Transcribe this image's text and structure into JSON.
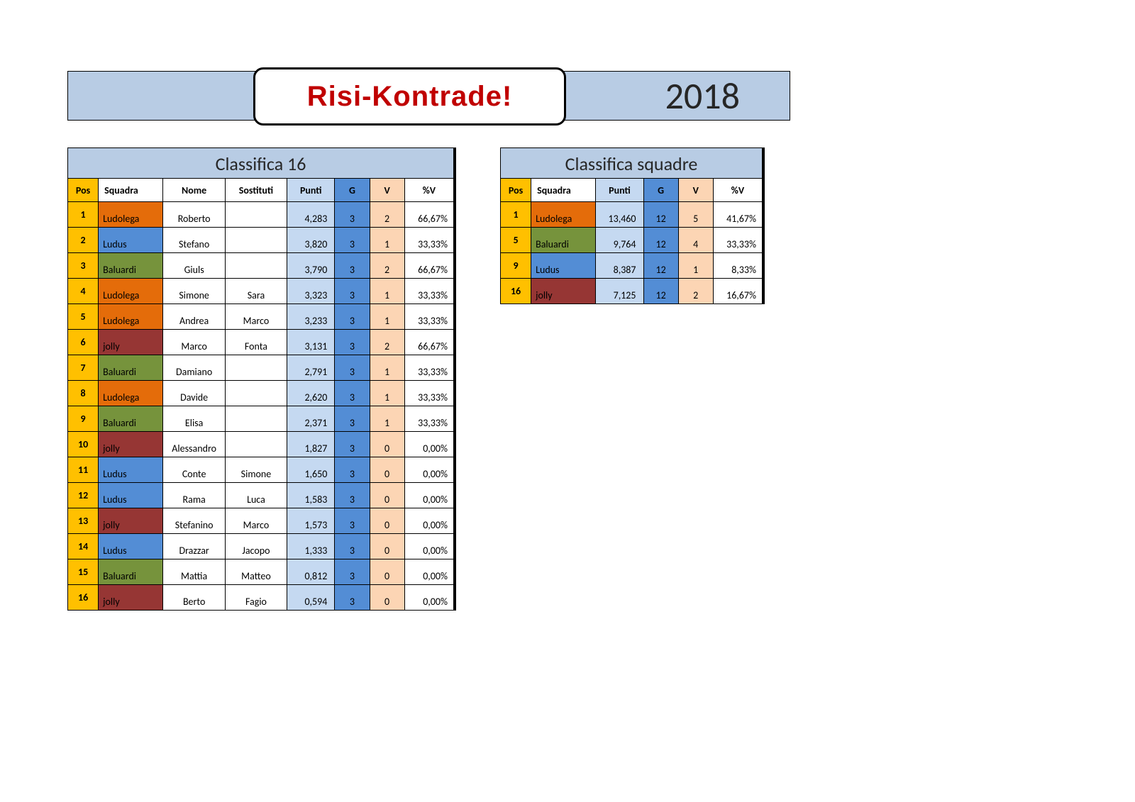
{
  "header": {
    "logo_text": "Risi-Kontrade!",
    "year": "2018"
  },
  "team_colors": {
    "Ludolega": {
      "bg": "#e46c0a",
      "fg": "#000000"
    },
    "Ludus": {
      "bg": "#538dd5",
      "fg": "#000000"
    },
    "Baluardi": {
      "bg": "#76933c",
      "fg": "#000000"
    },
    "jolly": {
      "bg": "#963634",
      "fg": "#000000"
    }
  },
  "table16": {
    "title": "Classifica 16",
    "columns": [
      "Pos",
      "Squadra",
      "Nome",
      "Sostituti",
      "Punti",
      "G",
      "V",
      "%V"
    ],
    "rows": [
      {
        "pos": "1",
        "squadra": "Ludolega",
        "nome": "Roberto",
        "sost": "",
        "punti": "4,283",
        "g": "3",
        "v": "2",
        "pct": "66,67%"
      },
      {
        "pos": "2",
        "squadra": "Ludus",
        "nome": "Stefano",
        "sost": "",
        "punti": "3,820",
        "g": "3",
        "v": "1",
        "pct": "33,33%"
      },
      {
        "pos": "3",
        "squadra": "Baluardi",
        "nome": "Giuls",
        "sost": "",
        "punti": "3,790",
        "g": "3",
        "v": "2",
        "pct": "66,67%"
      },
      {
        "pos": "4",
        "squadra": "Ludolega",
        "nome": "Simone",
        "sost": "Sara",
        "punti": "3,323",
        "g": "3",
        "v": "1",
        "pct": "33,33%"
      },
      {
        "pos": "5",
        "squadra": "Ludolega",
        "nome": "Andrea",
        "sost": "Marco",
        "punti": "3,233",
        "g": "3",
        "v": "1",
        "pct": "33,33%"
      },
      {
        "pos": "6",
        "squadra": "jolly",
        "nome": "Marco",
        "sost": "Fonta",
        "punti": "3,131",
        "g": "3",
        "v": "2",
        "pct": "66,67%"
      },
      {
        "pos": "7",
        "squadra": "Baluardi",
        "nome": "Damiano",
        "sost": "",
        "punti": "2,791",
        "g": "3",
        "v": "1",
        "pct": "33,33%"
      },
      {
        "pos": "8",
        "squadra": "Ludolega",
        "nome": "Davide",
        "sost": "",
        "punti": "2,620",
        "g": "3",
        "v": "1",
        "pct": "33,33%"
      },
      {
        "pos": "9",
        "squadra": "Baluardi",
        "nome": "Elisa",
        "sost": "",
        "punti": "2,371",
        "g": "3",
        "v": "1",
        "pct": "33,33%"
      },
      {
        "pos": "10",
        "squadra": "jolly",
        "nome": "Alessandro",
        "sost": "",
        "punti": "1,827",
        "g": "3",
        "v": "0",
        "pct": "0,00%"
      },
      {
        "pos": "11",
        "squadra": "Ludus",
        "nome": "Conte",
        "sost": "Simone",
        "punti": "1,650",
        "g": "3",
        "v": "0",
        "pct": "0,00%"
      },
      {
        "pos": "12",
        "squadra": "Ludus",
        "nome": "Rama",
        "sost": "Luca",
        "punti": "1,583",
        "g": "3",
        "v": "0",
        "pct": "0,00%"
      },
      {
        "pos": "13",
        "squadra": "jolly",
        "nome": "Stefanino",
        "sost": "Marco",
        "punti": "1,573",
        "g": "3",
        "v": "0",
        "pct": "0,00%"
      },
      {
        "pos": "14",
        "squadra": "Ludus",
        "nome": "Drazzar",
        "sost": "Jacopo",
        "punti": "1,333",
        "g": "3",
        "v": "0",
        "pct": "0,00%"
      },
      {
        "pos": "15",
        "squadra": "Baluardi",
        "nome": "Mattia",
        "sost": "Matteo",
        "punti": "0,812",
        "g": "3",
        "v": "0",
        "pct": "0,00%"
      },
      {
        "pos": "16",
        "squadra": "jolly",
        "nome": "Berto",
        "sost": "Fagio",
        "punti": "0,594",
        "g": "3",
        "v": "0",
        "pct": "0,00%"
      }
    ]
  },
  "tableSq": {
    "title": "Classifica squadre",
    "columns": [
      "Pos",
      "Squadra",
      "Punti",
      "G",
      "V",
      "%V"
    ],
    "rows": [
      {
        "pos": "1",
        "squadra": "Ludolega",
        "punti": "13,460",
        "g": "12",
        "v": "5",
        "pct": "41,67%"
      },
      {
        "pos": "5",
        "squadra": "Baluardi",
        "punti": "9,764",
        "g": "12",
        "v": "4",
        "pct": "33,33%"
      },
      {
        "pos": "9",
        "squadra": "Ludus",
        "punti": "8,387",
        "g": "12",
        "v": "1",
        "pct": "8,33%"
      },
      {
        "pos": "16",
        "squadra": "jolly",
        "punti": "7,125",
        "g": "12",
        "v": "2",
        "pct": "16,67%"
      }
    ]
  }
}
